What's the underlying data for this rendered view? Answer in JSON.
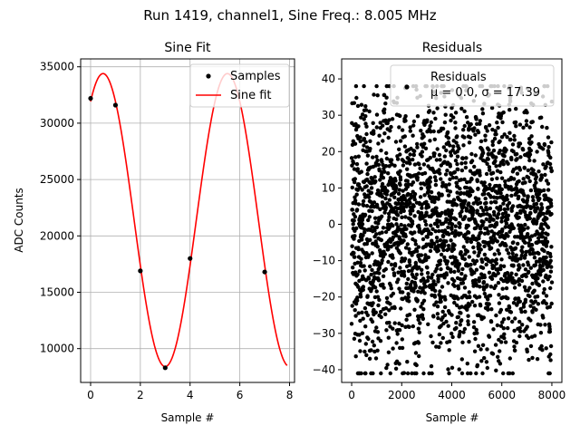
{
  "figure": {
    "suptitle": "Run 1419, channel1, Sine Freq.: 8.005 MHz"
  },
  "colors": {
    "samples": "#000000",
    "fit": "#ff0000",
    "residuals": "#000000",
    "grid": "#b0b0b0"
  },
  "chart_data": [
    {
      "type": "line",
      "title": "Sine Fit",
      "xlabel": "Sample #",
      "ylabel": "ADC Counts",
      "xlim": [
        -0.4,
        8.2
      ],
      "ylim": [
        7000,
        35700
      ],
      "xticks": [
        0,
        2,
        4,
        6,
        8
      ],
      "yticks": [
        10000,
        15000,
        20000,
        25000,
        30000,
        35000
      ],
      "grid": true,
      "legend_position": "top-right",
      "series": [
        {
          "name": "Samples",
          "style": "points",
          "x": [
            0,
            1,
            2,
            3,
            4,
            5,
            6,
            7
          ],
          "y": [
            32200,
            31600,
            16900,
            8300,
            18000,
            null,
            null,
            16800
          ]
        },
        {
          "name": "Sine fit",
          "style": "line",
          "model": {
            "offset": 21400,
            "amplitude": 13000,
            "period": 5.0,
            "peak_at": 0.5
          },
          "x_range": [
            0,
            7.9
          ]
        }
      ]
    },
    {
      "type": "scatter",
      "title": "Residuals",
      "xlabel": "Sample #",
      "ylabel": "",
      "xlim": [
        -400,
        8400
      ],
      "ylim": [
        -43.5,
        45.5
      ],
      "xticks": [
        0,
        2000,
        4000,
        6000,
        8000
      ],
      "yticks": [
        -40,
        -30,
        -20,
        -10,
        0,
        10,
        20,
        30,
        40
      ],
      "grid": false,
      "legend_position": "top-right",
      "legend_entries": [
        "Residuals",
        "μ = 0.0, σ = 17.39"
      ],
      "series": [
        {
          "name": "Residuals",
          "style": "points",
          "x_range": [
            0,
            8000
          ],
          "y_range": [
            -41,
            38
          ],
          "mean": 0.0,
          "sigma": 17.39
        }
      ]
    }
  ]
}
